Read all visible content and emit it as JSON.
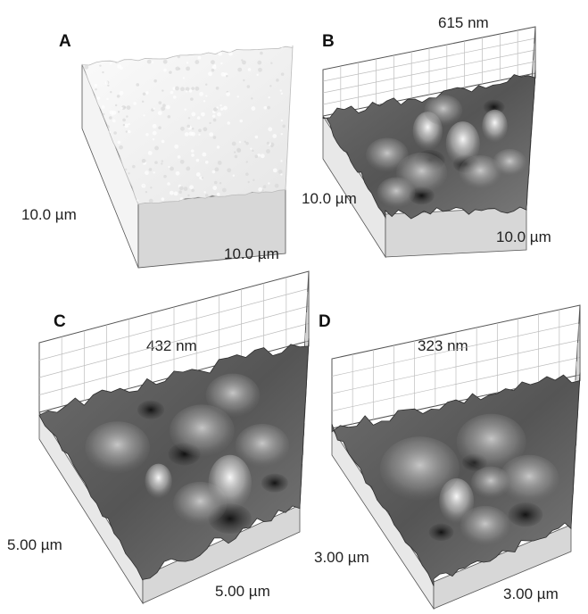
{
  "figure": {
    "panels": [
      {
        "id": "A",
        "letter": "A",
        "height_label": "",
        "x_label": "10.0 µm",
        "y_label": "10.0 µm",
        "roughness": 0.05,
        "shading": "light"
      },
      {
        "id": "B",
        "letter": "B",
        "height_label": "615 nm",
        "x_label": "10.0 µm",
        "y_label": "10.0 µm",
        "roughness": 1.0,
        "shading": "dark"
      },
      {
        "id": "C",
        "letter": "C",
        "height_label": "432 nm",
        "x_label": "5.00 µm",
        "y_label": "5.00 µm",
        "roughness": 0.8,
        "shading": "dark"
      },
      {
        "id": "D",
        "letter": "D",
        "height_label": "323 nm",
        "x_label": "3.00 µm",
        "y_label": "3.00 µm",
        "roughness": 0.7,
        "shading": "dark"
      }
    ]
  },
  "colors": {
    "box_edge": "#555555",
    "grid": "#bdbdbd",
    "floor_side": "#d7d7d7",
    "surface_light": "#f2f2f2",
    "surface_dark": "#3a3a3a"
  }
}
